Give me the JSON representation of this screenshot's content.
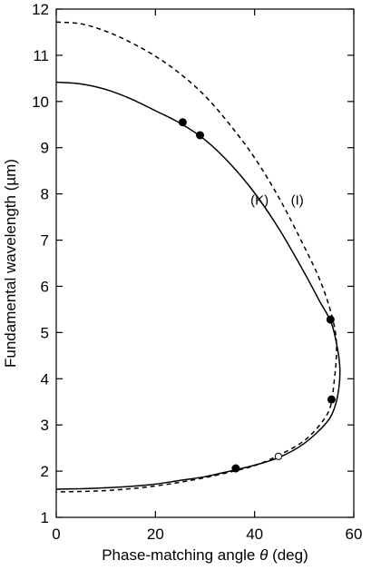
{
  "chart_data": {
    "type": "line",
    "xlabel_prefix": "Phase-matching angle ",
    "xlabel_symbol": "θ",
    "xlabel_suffix": " (deg)",
    "ylabel": "Fundamental wavelength (µm)",
    "xlim": [
      0,
      60
    ],
    "ylim": [
      1,
      12
    ],
    "xticks": [
      0,
      20,
      40,
      60
    ],
    "yticks": [
      1,
      2,
      3,
      4,
      5,
      6,
      7,
      8,
      9,
      10,
      11,
      12
    ],
    "grid": false,
    "series": [
      {
        "name": "(K)",
        "style": "solid",
        "color": "#000000",
        "points": [
          [
            0,
            10.42
          ],
          [
            5,
            10.38
          ],
          [
            10,
            10.26
          ],
          [
            15,
            10.06
          ],
          [
            20,
            9.8
          ],
          [
            25,
            9.53
          ],
          [
            30,
            9.17
          ],
          [
            35,
            8.66
          ],
          [
            40,
            8.02
          ],
          [
            45,
            7.23
          ],
          [
            50,
            6.3
          ],
          [
            53,
            5.7
          ],
          [
            55.5,
            5.2
          ],
          [
            56.8,
            4.6
          ],
          [
            57.2,
            4.2
          ],
          [
            57.0,
            3.8
          ],
          [
            56.2,
            3.4
          ],
          [
            54.5,
            3.05
          ],
          [
            50,
            2.6
          ],
          [
            45,
            2.3
          ],
          [
            40,
            2.13
          ],
          [
            35,
            2.0
          ],
          [
            30,
            1.88
          ],
          [
            25,
            1.8
          ],
          [
            20,
            1.72
          ],
          [
            15,
            1.67
          ],
          [
            10,
            1.64
          ],
          [
            5,
            1.62
          ],
          [
            0,
            1.61
          ]
        ]
      },
      {
        "name": "(I)",
        "style": "dashed",
        "color": "#000000",
        "points": [
          [
            0,
            11.72
          ],
          [
            5,
            11.68
          ],
          [
            10,
            11.52
          ],
          [
            15,
            11.28
          ],
          [
            20,
            10.98
          ],
          [
            25,
            10.6
          ],
          [
            30,
            10.12
          ],
          [
            35,
            9.5
          ],
          [
            40,
            8.78
          ],
          [
            45,
            7.9
          ],
          [
            50,
            6.86
          ],
          [
            53,
            6.18
          ],
          [
            55,
            5.58
          ],
          [
            56.3,
            5.0
          ],
          [
            56.5,
            4.5
          ],
          [
            56.0,
            3.9
          ],
          [
            55.3,
            3.4
          ],
          [
            53.5,
            3.05
          ],
          [
            50,
            2.66
          ],
          [
            45,
            2.35
          ],
          [
            40,
            2.12
          ],
          [
            35,
            1.98
          ],
          [
            30,
            1.86
          ],
          [
            25,
            1.76
          ],
          [
            20,
            1.68
          ],
          [
            15,
            1.62
          ],
          [
            10,
            1.58
          ],
          [
            5,
            1.56
          ],
          [
            0,
            1.55
          ]
        ]
      }
    ],
    "markers_filled": [
      [
        25.5,
        9.55
      ],
      [
        29.0,
        9.27
      ],
      [
        55.3,
        5.28
      ],
      [
        55.5,
        3.55
      ],
      [
        36.2,
        2.06
      ]
    ],
    "markers_open": [
      [
        44.8,
        2.32
      ]
    ],
    "annotations": [
      {
        "text": "(K)",
        "x": 41.0,
        "y": 7.77
      },
      {
        "text": "(I)",
        "x": 48.6,
        "y": 7.77
      }
    ]
  }
}
